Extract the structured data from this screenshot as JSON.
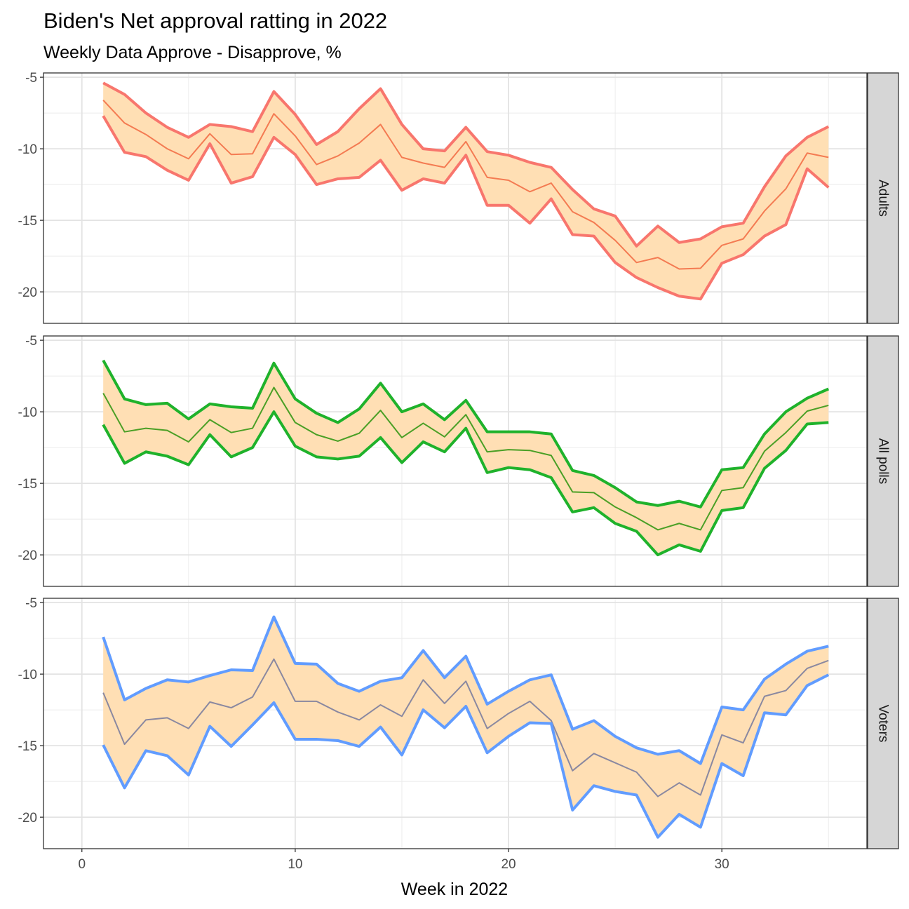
{
  "chart_data": {
    "type": "line",
    "title": "Biden's Net approval ratting in 2022",
    "subtitle": "Weekly Data Approve - Disapprove, %",
    "xlabel": "Week in 2022",
    "ylabel": "",
    "xlim": [
      -1.8,
      36.8
    ],
    "ylim": [
      -22.2,
      -4.7
    ],
    "x_ticks": [
      0,
      10,
      20,
      30
    ],
    "y_ticks": [
      -5,
      -10,
      -15,
      -20
    ],
    "grid": true,
    "ribbon_color": "#ffdfb4",
    "weeks": [
      1,
      2,
      3,
      4,
      5,
      6,
      7,
      8,
      9,
      10,
      11,
      12,
      13,
      14,
      15,
      16,
      17,
      18,
      19,
      20,
      21,
      22,
      23,
      24,
      25,
      26,
      27,
      28,
      29,
      30,
      31,
      32,
      33,
      34,
      35
    ],
    "panels": [
      {
        "name": "Adults",
        "color": "#f8766d",
        "mid_color": "#f47b52",
        "upper": [
          -5.4,
          -6.2,
          -7.5,
          -8.5,
          -9.2,
          -8.3,
          -8.45,
          -8.8,
          -6.0,
          -7.6,
          -9.7,
          -8.8,
          -7.2,
          -5.8,
          -8.3,
          -10.0,
          -10.15,
          -8.5,
          -10.2,
          -10.45,
          -10.95,
          -11.3,
          -12.85,
          -14.2,
          -14.7,
          -16.8,
          -15.4,
          -16.55,
          -16.3,
          -15.45,
          -15.2,
          -12.65,
          -10.5,
          -9.2,
          -8.45
        ],
        "mid": [
          -6.6,
          -8.2,
          -9.0,
          -10.0,
          -10.7,
          -8.95,
          -10.4,
          -10.35,
          -7.55,
          -9.1,
          -11.1,
          -10.5,
          -9.6,
          -8.3,
          -10.6,
          -11.0,
          -11.3,
          -9.5,
          -12.0,
          -12.2,
          -13.0,
          -12.4,
          -14.4,
          -15.15,
          -16.4,
          -17.95,
          -17.6,
          -18.4,
          -18.35,
          -16.75,
          -16.3,
          -14.35,
          -12.8,
          -10.3,
          -10.6
        ],
        "lower": [
          -7.7,
          -10.25,
          -10.55,
          -11.5,
          -12.2,
          -9.65,
          -12.4,
          -11.95,
          -9.2,
          -10.4,
          -12.5,
          -12.1,
          -12.0,
          -10.8,
          -12.9,
          -12.1,
          -12.4,
          -10.45,
          -13.95,
          -13.95,
          -15.2,
          -13.5,
          -16.0,
          -16.1,
          -17.95,
          -19.0,
          -19.7,
          -20.3,
          -20.5,
          -18.0,
          -17.4,
          -16.1,
          -15.3,
          -11.4,
          -12.7
        ]
      },
      {
        "name": "All polls",
        "color": "#1fb22b",
        "mid_color": "#4a9f25",
        "upper": [
          -6.4,
          -9.1,
          -9.5,
          -9.4,
          -10.5,
          -9.45,
          -9.65,
          -9.75,
          -6.6,
          -9.1,
          -10.1,
          -10.75,
          -9.8,
          -8.0,
          -10.0,
          -9.45,
          -10.55,
          -9.2,
          -11.4,
          -11.4,
          -11.4,
          -11.55,
          -14.1,
          -14.45,
          -15.3,
          -16.3,
          -16.55,
          -16.25,
          -16.65,
          -14.05,
          -13.9,
          -11.55,
          -10.0,
          -9.05,
          -8.4
        ],
        "mid": [
          -8.7,
          -11.4,
          -11.15,
          -11.3,
          -12.1,
          -10.55,
          -11.45,
          -11.15,
          -8.3,
          -10.75,
          -11.6,
          -12.05,
          -11.5,
          -9.9,
          -11.8,
          -10.8,
          -11.75,
          -10.2,
          -12.8,
          -12.65,
          -12.7,
          -13.05,
          -15.6,
          -15.65,
          -16.65,
          -17.4,
          -18.25,
          -17.8,
          -18.25,
          -15.5,
          -15.3,
          -12.75,
          -11.45,
          -9.95,
          -9.55
        ],
        "lower": [
          -10.9,
          -13.6,
          -12.8,
          -13.1,
          -13.7,
          -11.6,
          -13.15,
          -12.5,
          -10.0,
          -12.4,
          -13.15,
          -13.3,
          -13.1,
          -11.8,
          -13.55,
          -12.1,
          -12.8,
          -11.15,
          -14.25,
          -13.9,
          -14.05,
          -14.6,
          -17.0,
          -16.7,
          -17.8,
          -18.35,
          -20.0,
          -19.3,
          -19.75,
          -16.9,
          -16.7,
          -13.95,
          -12.7,
          -10.85,
          -10.75
        ]
      },
      {
        "name": "Voters",
        "color": "#619cff",
        "mid_color": "#8a88a0",
        "upper": [
          -7.4,
          -11.8,
          -11.0,
          -10.4,
          -10.55,
          -10.1,
          -9.7,
          -9.75,
          -6.0,
          -9.25,
          -9.3,
          -10.65,
          -11.2,
          -10.5,
          -10.25,
          -8.35,
          -10.25,
          -8.75,
          -12.1,
          -11.2,
          -10.4,
          -10.05,
          -13.85,
          -13.25,
          -14.35,
          -15.15,
          -15.6,
          -15.35,
          -16.25,
          -12.3,
          -12.5,
          -10.35,
          -9.3,
          -8.4,
          -8.05
        ],
        "mid": [
          -11.3,
          -14.9,
          -13.2,
          -13.05,
          -13.8,
          -11.95,
          -12.35,
          -11.6,
          -8.95,
          -11.9,
          -11.9,
          -12.65,
          -13.2,
          -12.15,
          -12.95,
          -10.4,
          -12.05,
          -10.5,
          -13.8,
          -12.75,
          -11.9,
          -13.25,
          -16.75,
          -15.55,
          -16.2,
          -16.85,
          -18.55,
          -17.6,
          -18.45,
          -14.25,
          -14.8,
          -11.55,
          -11.15,
          -9.6,
          -9.05
        ],
        "lower": [
          -14.95,
          -17.95,
          -15.35,
          -15.7,
          -17.05,
          -13.65,
          -15.05,
          -13.55,
          -12.0,
          -14.55,
          -14.55,
          -14.65,
          -15.05,
          -13.7,
          -15.65,
          -12.5,
          -13.75,
          -12.25,
          -15.5,
          -14.35,
          -13.4,
          -13.45,
          -19.5,
          -17.8,
          -18.2,
          -18.45,
          -21.4,
          -19.8,
          -20.7,
          -16.25,
          -17.1,
          -12.7,
          -12.85,
          -10.8,
          -10.05
        ]
      }
    ]
  }
}
